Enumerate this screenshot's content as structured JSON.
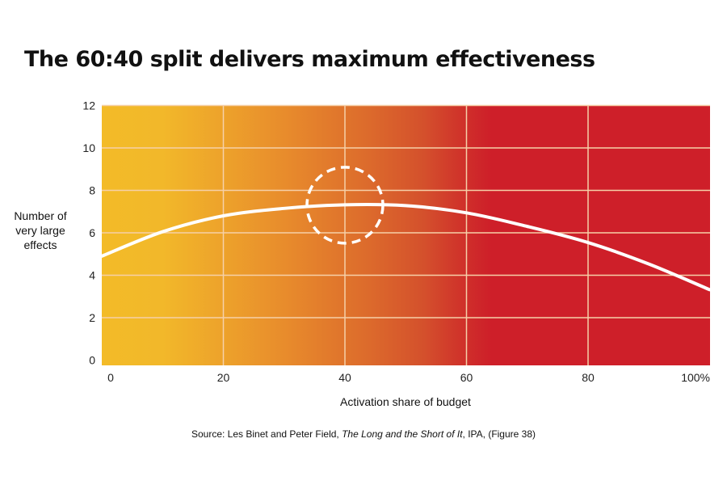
{
  "chart_data": {
    "type": "line",
    "title": "The 60:40 split delivers maximum effectiveness",
    "xlabel": "Activation share of budget",
    "ylabel": [
      "Number of",
      "very large",
      "effects"
    ],
    "xlim": [
      0,
      100
    ],
    "ylim": [
      0,
      12
    ],
    "x_ticks": [
      0,
      20,
      40,
      60,
      80,
      100
    ],
    "x_tick_labels": [
      "0",
      "20",
      "40",
      "60",
      "80",
      "100%"
    ],
    "y_ticks": [
      0,
      2,
      4,
      6,
      8,
      10,
      12
    ],
    "y_tick_labels": [
      "0",
      "2",
      "4",
      "6",
      "8",
      "10",
      "12"
    ],
    "grid": true,
    "series": [
      {
        "name": "Number of very large effects",
        "color": "#ffffff",
        "x": [
          0,
          10,
          20,
          30,
          40,
          50,
          60,
          70,
          80,
          90,
          100
        ],
        "y": [
          4.9,
          6.05,
          6.8,
          7.15,
          7.32,
          7.28,
          6.94,
          6.3,
          5.54,
          4.53,
          3.32
        ]
      }
    ],
    "highlight": {
      "x": 40,
      "y": 7.3,
      "style": "dashed-circle"
    },
    "background_gradient": [
      "#f3bb28",
      "#e88c2c",
      "#dc6a2c",
      "#cf2129"
    ]
  },
  "source": {
    "prefix": "Source: Les Binet and Peter Field, ",
    "title": "The Long and the Short of It",
    "suffix": ", IPA, (Figure 38)"
  }
}
